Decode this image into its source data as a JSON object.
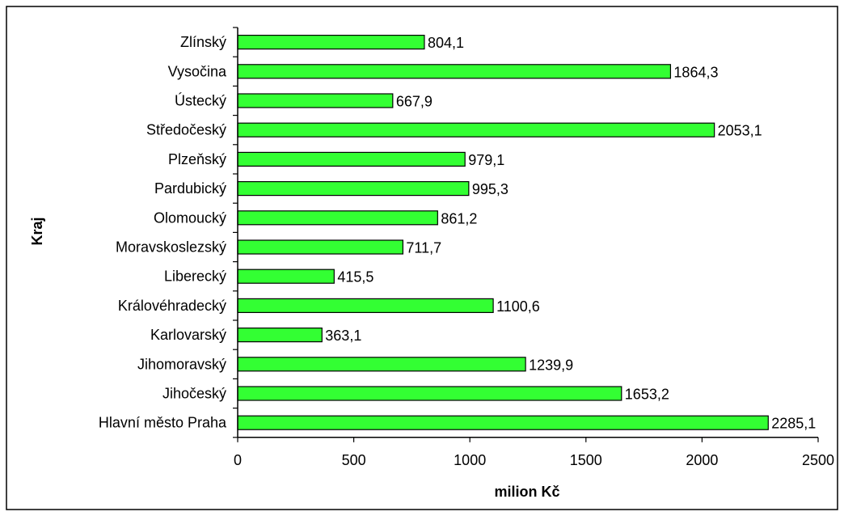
{
  "chart_data": {
    "type": "bar",
    "orientation": "horizontal",
    "categories": [
      "Zlínský",
      "Vysočina",
      "Ústecký",
      "Středočeský",
      "Plzeňský",
      "Pardubický",
      "Olomoucký",
      "Moravskoslezský",
      "Liberecký",
      "Královéhradecký",
      "Karlovarský",
      "Jihomoravský",
      "Jihočeský",
      "Hlavní město Praha"
    ],
    "values": [
      804.1,
      1864.3,
      667.9,
      2053.1,
      979.1,
      995.3,
      861.2,
      711.7,
      415.5,
      1100.6,
      363.1,
      1239.9,
      1653.2,
      2285.1
    ],
    "value_labels": [
      "804,1",
      "1864,3",
      "667,9",
      "2053,1",
      "979,1",
      "995,3",
      "861,2",
      "711,7",
      "415,5",
      "1100,6",
      "363,1",
      "1239,9",
      "1653,2",
      "2285,1"
    ],
    "xlabel": "milion Kč",
    "ylabel": "Kraj",
    "xlim": [
      0,
      2500
    ],
    "x_ticks": [
      0,
      500,
      1000,
      1500,
      2000,
      2500
    ],
    "x_tick_labels": [
      "0",
      "500",
      "1000",
      "1500",
      "2000",
      "2500"
    ],
    "grid": false,
    "legend": "none",
    "colors": {
      "bar_fill": "#33ff33",
      "bar_stroke": "#000000"
    }
  }
}
